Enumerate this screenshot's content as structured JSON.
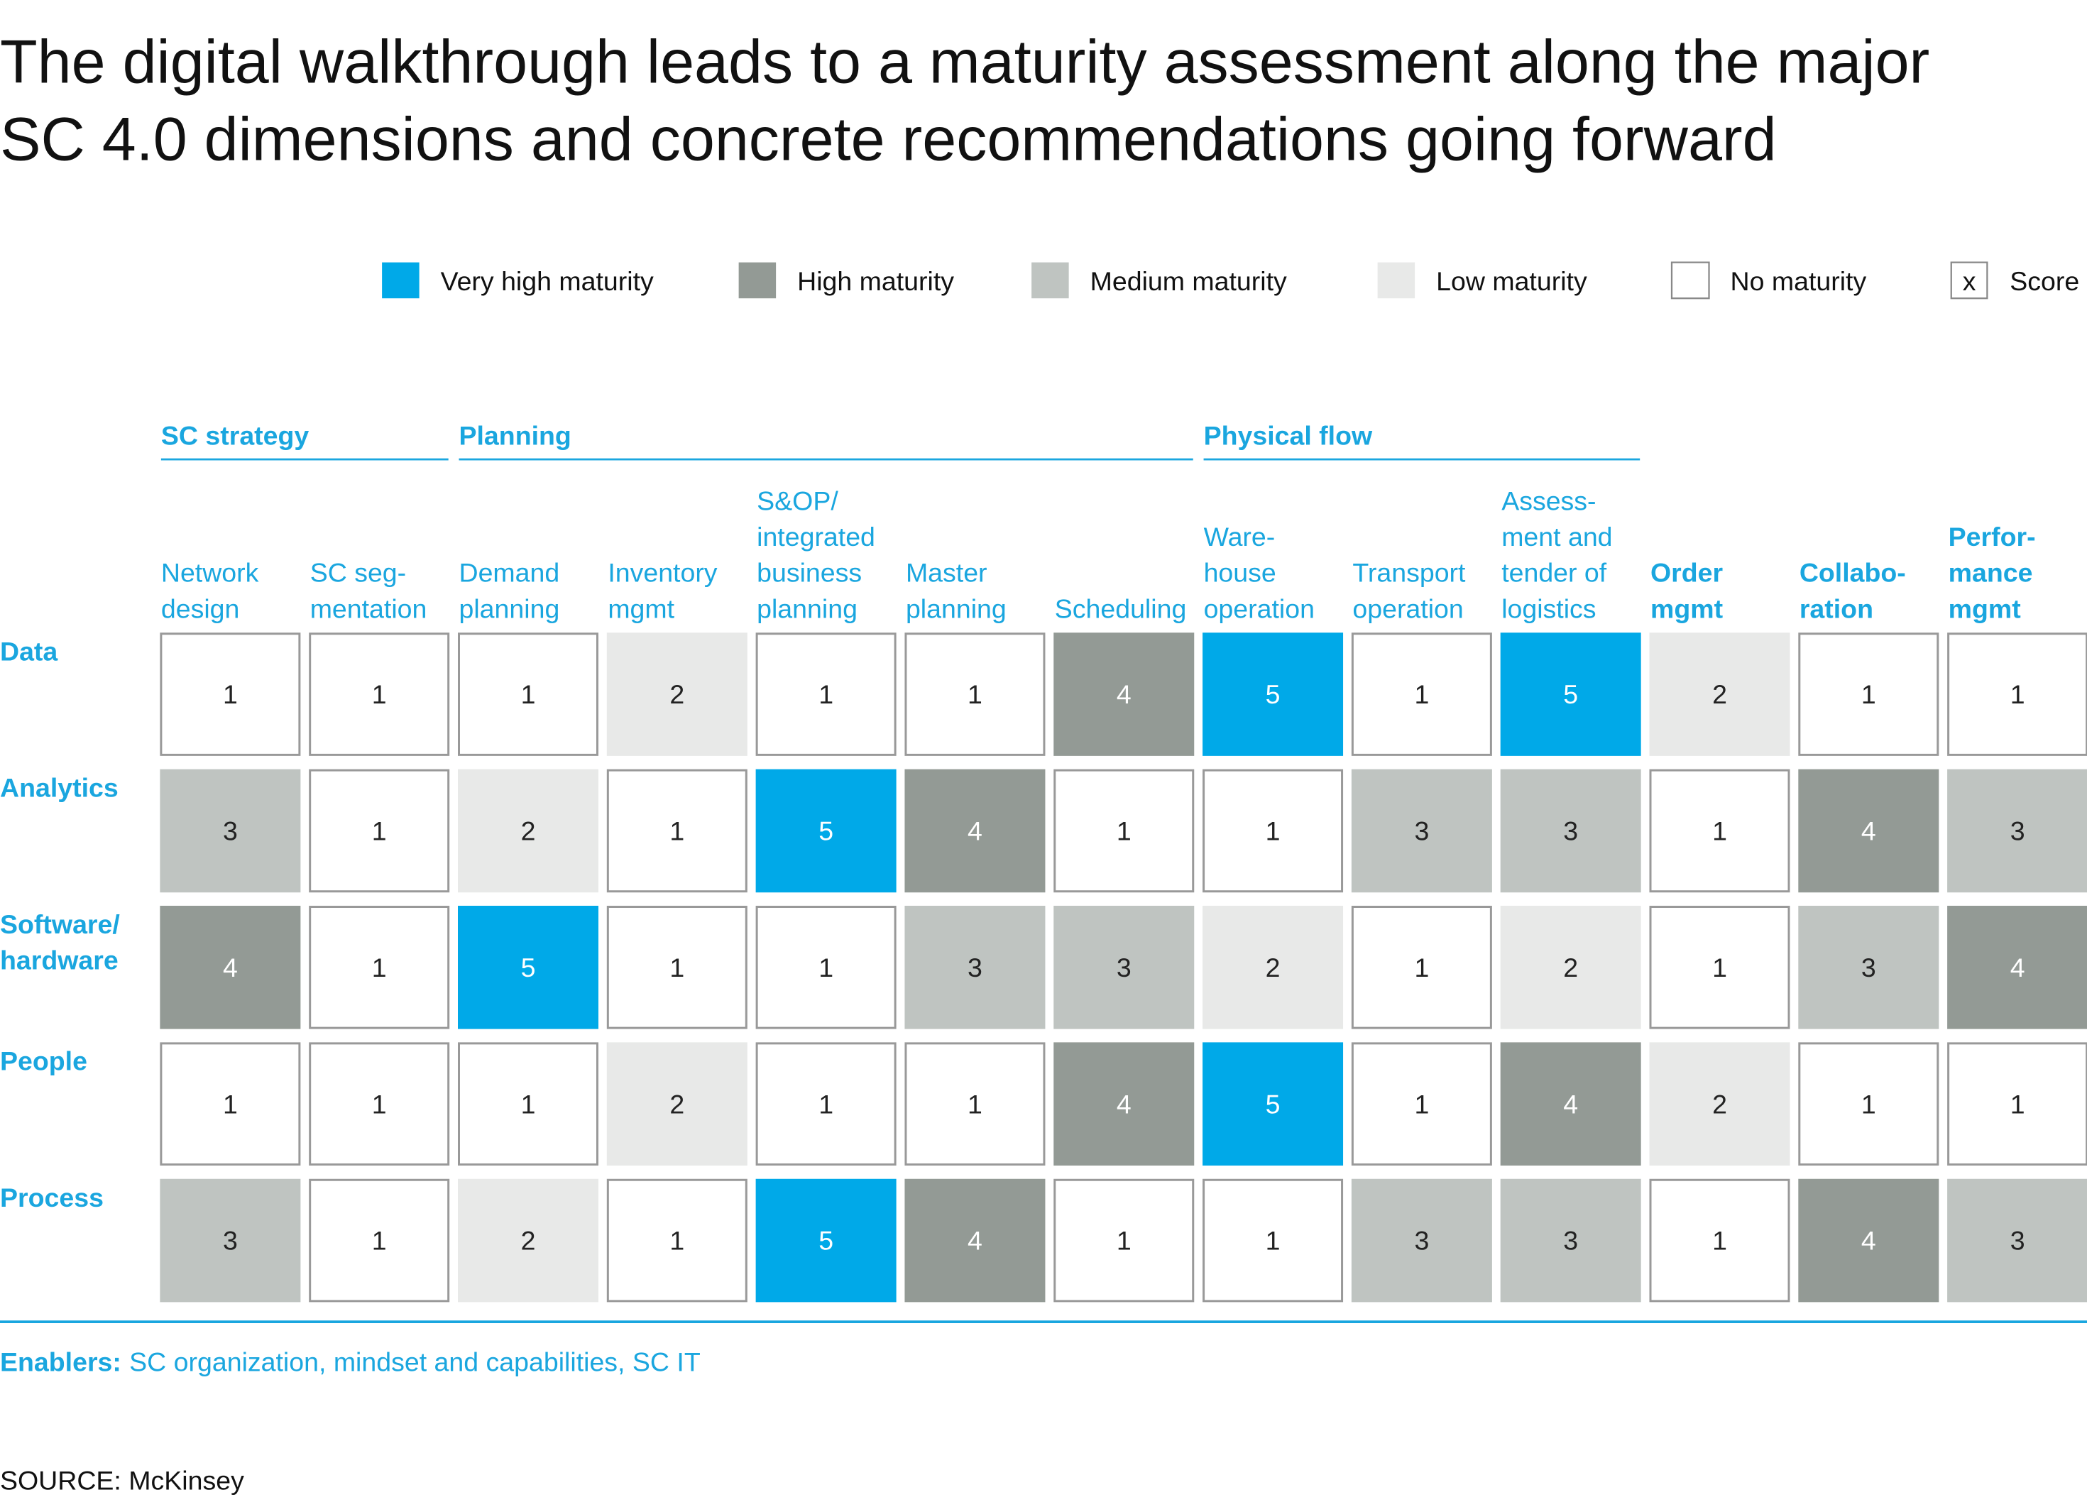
{
  "chart_data": {
    "type": "heatmap",
    "title": [
      "The digital walkthrough leads to a maturity assessment along the major",
      "SC 4.0 dimensions and concrete recommendations going forward"
    ],
    "legend": [
      {
        "name": "Very high maturity",
        "color": "#00A9E8",
        "score": 5
      },
      {
        "name": "High maturity",
        "color": "#939A95",
        "score": 4
      },
      {
        "name": "Medium maturity",
        "color": "#BFC4C1",
        "score": 3
      },
      {
        "name": "Low maturity",
        "color": "#E8E9E8",
        "score": 2
      },
      {
        "name": "No maturity",
        "color": "#FFFFFF",
        "score": 1
      }
    ],
    "score_legend": {
      "symbol": "x",
      "name": "Score"
    },
    "column_groups": [
      {
        "name": "SC strategy",
        "first": 0,
        "last": 1
      },
      {
        "name": "Planning",
        "first": 2,
        "last": 6
      },
      {
        "name": "Physical flow",
        "first": 7,
        "last": 9
      }
    ],
    "columns": [
      [
        "Network",
        "design"
      ],
      [
        "SC seg-",
        "mentation"
      ],
      [
        "Demand",
        "planning"
      ],
      [
        "Inventory",
        "mgmt"
      ],
      [
        "S&OP/",
        "integrated",
        "business",
        "planning"
      ],
      [
        "Master",
        "planning"
      ],
      [
        "Scheduling"
      ],
      [
        "Ware-",
        "house",
        "operation"
      ],
      [
        "Transport",
        "operation"
      ],
      [
        "Assess-",
        "ment and",
        "tender of",
        "logistics"
      ],
      [
        "Order",
        "mgmt"
      ],
      [
        "Collabo-",
        "ration"
      ],
      [
        "Perfor-",
        "mance",
        "mgmt"
      ]
    ],
    "rows": [
      [
        "Data"
      ],
      [
        "Analytics"
      ],
      [
        "Software/",
        "hardware"
      ],
      [
        "People"
      ],
      [
        "Process"
      ]
    ],
    "values": [
      [
        1,
        1,
        1,
        2,
        1,
        1,
        4,
        5,
        1,
        5,
        2,
        1,
        1
      ],
      [
        3,
        1,
        2,
        1,
        5,
        4,
        1,
        1,
        3,
        3,
        1,
        4,
        3
      ],
      [
        4,
        1,
        5,
        1,
        1,
        3,
        3,
        2,
        1,
        2,
        1,
        3,
        4
      ],
      [
        1,
        1,
        1,
        2,
        1,
        1,
        4,
        5,
        1,
        4,
        2,
        1,
        1
      ],
      [
        3,
        1,
        2,
        1,
        5,
        4,
        1,
        1,
        3,
        3,
        1,
        4,
        3
      ]
    ],
    "enablers": {
      "label": "Enablers:",
      "text": "SC organization, mindset and capabilities, SC IT"
    },
    "source": "SOURCE: McKinsey"
  }
}
